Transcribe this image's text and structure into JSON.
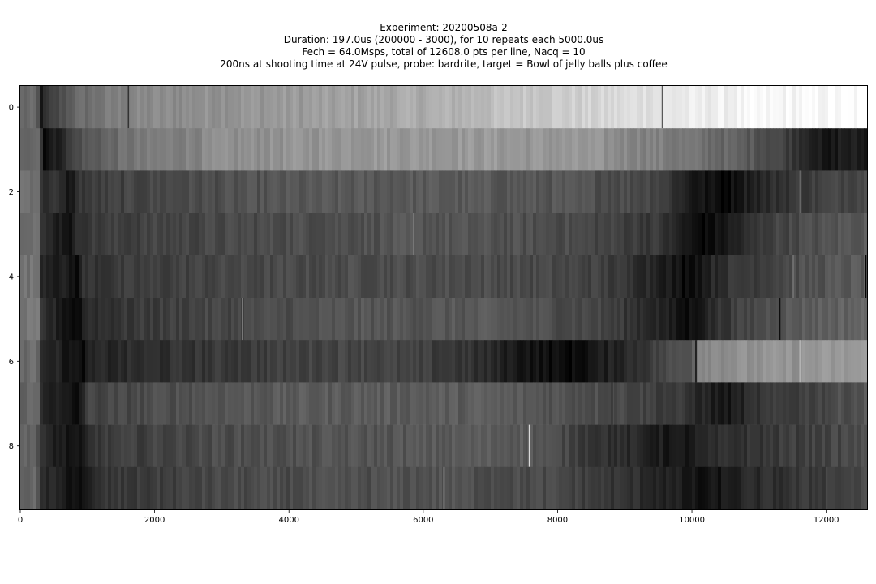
{
  "chart_data": {
    "type": "heatmap",
    "title_lines": [
      "Experiment: 20200508a-2",
      "Duration: 197.0us (200000 - 3000), for 10 repeats each 5000.0us",
      "Fech = 64.0Msps, total of 12608.0 pts per line, Nacq = 10",
      "200ns at shooting time at 24V pulse, probe: bardrite, target = Bowl of jelly balls plus coffee"
    ],
    "xlabel": "",
    "ylabel": "",
    "xlim": [
      0,
      12608
    ],
    "ylim": [
      9.5,
      -0.5
    ],
    "colormap": "gray",
    "grid": false,
    "x_ticks": [
      0,
      2000,
      4000,
      6000,
      8000,
      10000,
      12000
    ],
    "x_tick_labels": [
      "0",
      "2000",
      "4000",
      "6000",
      "8000",
      "10000",
      "12000"
    ],
    "y_ticks": [
      0,
      2,
      4,
      6,
      8
    ],
    "y_tick_labels": [
      "0",
      "2",
      "4",
      "6",
      "8"
    ],
    "rows": 10,
    "row_profiles": [
      [
        [
          0,
          0.4
        ],
        [
          250,
          0.4
        ],
        [
          300,
          0.1
        ],
        [
          450,
          0.22
        ],
        [
          800,
          0.4
        ],
        [
          1600,
          0.52
        ],
        [
          3000,
          0.58
        ],
        [
          5000,
          0.63
        ],
        [
          6500,
          0.7
        ],
        [
          7500,
          0.78
        ],
        [
          8500,
          0.82
        ],
        [
          9500,
          0.9
        ],
        [
          11000,
          0.96
        ],
        [
          12608,
          0.98
        ]
      ],
      [
        [
          0,
          0.42
        ],
        [
          280,
          0.42
        ],
        [
          340,
          0.05
        ],
        [
          550,
          0.12
        ],
        [
          900,
          0.32
        ],
        [
          1600,
          0.45
        ],
        [
          3000,
          0.55
        ],
        [
          5000,
          0.6
        ],
        [
          7000,
          0.6
        ],
        [
          8500,
          0.58
        ],
        [
          9500,
          0.5
        ],
        [
          10500,
          0.4
        ],
        [
          11200,
          0.3
        ],
        [
          11800,
          0.15
        ],
        [
          12000,
          0.04
        ],
        [
          12200,
          0.12
        ],
        [
          12608,
          0.1
        ]
      ],
      [
        [
          0,
          0.45
        ],
        [
          280,
          0.45
        ],
        [
          300,
          0.18
        ],
        [
          500,
          0.2
        ],
        [
          750,
          0.08
        ],
        [
          900,
          0.22
        ],
        [
          2000,
          0.28
        ],
        [
          4000,
          0.33
        ],
        [
          6000,
          0.35
        ],
        [
          8000,
          0.33
        ],
        [
          9500,
          0.28
        ],
        [
          10000,
          0.1
        ],
        [
          10500,
          0.03
        ],
        [
          10800,
          0.12
        ],
        [
          11500,
          0.22
        ],
        [
          12608,
          0.3
        ]
      ],
      [
        [
          0,
          0.45
        ],
        [
          280,
          0.45
        ],
        [
          300,
          0.18
        ],
        [
          780,
          0.08
        ],
        [
          900,
          0.22
        ],
        [
          2000,
          0.26
        ],
        [
          4000,
          0.3
        ],
        [
          6000,
          0.33
        ],
        [
          8000,
          0.3
        ],
        [
          9500,
          0.22
        ],
        [
          10000,
          0.06
        ],
        [
          10200,
          0.03
        ],
        [
          10700,
          0.14
        ],
        [
          11200,
          0.26
        ],
        [
          12608,
          0.36
        ]
      ],
      [
        [
          0,
          0.45
        ],
        [
          280,
          0.45
        ],
        [
          300,
          0.18
        ],
        [
          850,
          0.06
        ],
        [
          950,
          0.2
        ],
        [
          2500,
          0.26
        ],
        [
          5000,
          0.3
        ],
        [
          7000,
          0.3
        ],
        [
          8500,
          0.26
        ],
        [
          9500,
          0.15
        ],
        [
          9900,
          0.04
        ],
        [
          10500,
          0.2
        ],
        [
          11500,
          0.3
        ],
        [
          12608,
          0.36
        ]
      ],
      [
        [
          0,
          0.45
        ],
        [
          280,
          0.45
        ],
        [
          300,
          0.2
        ],
        [
          850,
          0.03
        ],
        [
          1000,
          0.18
        ],
        [
          2500,
          0.26
        ],
        [
          5000,
          0.33
        ],
        [
          7000,
          0.34
        ],
        [
          8500,
          0.28
        ],
        [
          9500,
          0.15
        ],
        [
          9900,
          0.04
        ],
        [
          10400,
          0.2
        ],
        [
          11300,
          0.34
        ],
        [
          12608,
          0.4
        ]
      ],
      [
        [
          0,
          0.42
        ],
        [
          280,
          0.42
        ],
        [
          300,
          0.2
        ],
        [
          900,
          0.04
        ],
        [
          1100,
          0.14
        ],
        [
          3000,
          0.22
        ],
        [
          5000,
          0.28
        ],
        [
          6500,
          0.22
        ],
        [
          7400,
          0.1
        ],
        [
          8200,
          0.03
        ],
        [
          9200,
          0.2
        ],
        [
          10000,
          0.35
        ],
        [
          10100,
          0.55
        ],
        [
          12608,
          0.6
        ]
      ],
      [
        [
          0,
          0.4
        ],
        [
          280,
          0.4
        ],
        [
          300,
          0.18
        ],
        [
          850,
          0.04
        ],
        [
          1000,
          0.26
        ],
        [
          3000,
          0.34
        ],
        [
          5000,
          0.36
        ],
        [
          7000,
          0.36
        ],
        [
          8800,
          0.3
        ],
        [
          9800,
          0.22
        ],
        [
          10500,
          0.08
        ],
        [
          11000,
          0.2
        ],
        [
          12000,
          0.28
        ],
        [
          12608,
          0.34
        ]
      ],
      [
        [
          0,
          0.4
        ],
        [
          250,
          0.4
        ],
        [
          280,
          0.18
        ],
        [
          900,
          0.04
        ],
        [
          1100,
          0.22
        ],
        [
          3000,
          0.3
        ],
        [
          6000,
          0.34
        ],
        [
          7500,
          0.36
        ],
        [
          8500,
          0.22
        ],
        [
          9800,
          0.08
        ],
        [
          10500,
          0.18
        ],
        [
          12608,
          0.3
        ]
      ],
      [
        [
          0,
          0.4
        ],
        [
          250,
          0.4
        ],
        [
          280,
          0.18
        ],
        [
          950,
          0.05
        ],
        [
          1200,
          0.2
        ],
        [
          3000,
          0.28
        ],
        [
          6300,
          0.32
        ],
        [
          8000,
          0.28
        ],
        [
          9500,
          0.15
        ],
        [
          10200,
          0.05
        ],
        [
          10800,
          0.15
        ],
        [
          12608,
          0.28
        ]
      ]
    ],
    "row_marks": [
      [
        [
          1600,
          0.2
        ],
        [
          9550,
          0.35
        ]
      ],
      [],
      [
        [
          11600,
          0.4
        ]
      ],
      [
        [
          5850,
          0.55
        ]
      ],
      [
        [
          12580,
          0.02
        ],
        [
          11500,
          0.45
        ]
      ],
      [
        [
          3300,
          0.55
        ],
        [
          11300,
          0.05
        ]
      ],
      [
        [
          10050,
          0.05
        ],
        [
          11600,
          0.7
        ]
      ],
      [
        [
          8800,
          0.05
        ]
      ],
      [
        [
          7570,
          0.85
        ],
        [
          7530,
          0.3
        ]
      ],
      [
        [
          6300,
          0.65
        ],
        [
          12000,
          0.45
        ]
      ]
    ]
  }
}
